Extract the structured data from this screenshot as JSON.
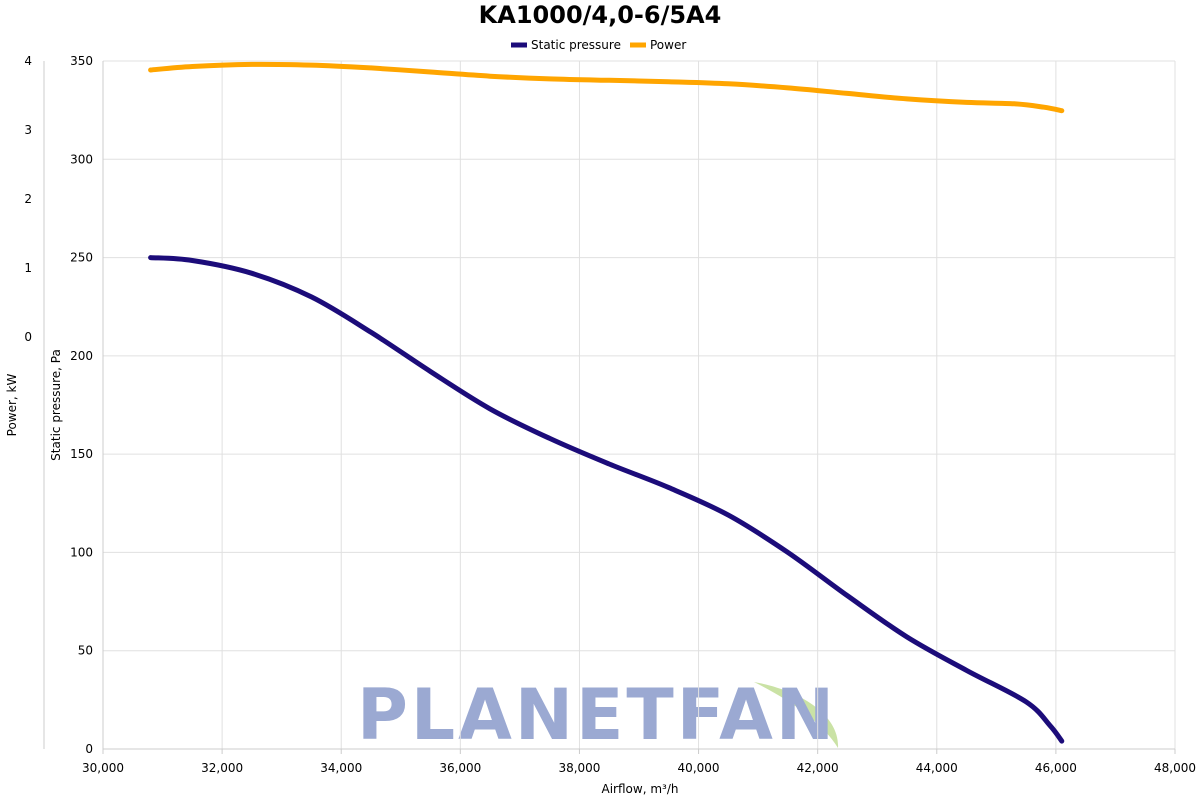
{
  "chart_data": {
    "type": "line",
    "title": "KA1000/4,0-6/5A4",
    "xlabel": "Airflow, m³/h",
    "ylabel_left_outer": "Power, kW",
    "ylabel_left_inner": "Static pressure, Pa",
    "xlim": [
      30000,
      48000
    ],
    "x_ticks": [
      "30,000",
      "32,000",
      "34,000",
      "36,000",
      "38,000",
      "40,000",
      "42,000",
      "44,000",
      "46,000",
      "48,000"
    ],
    "pressure_ticks": [
      "0",
      "50",
      "100",
      "150",
      "200",
      "250",
      "300",
      "350"
    ],
    "power_ticks": [
      "0",
      "1",
      "2",
      "3",
      "4"
    ],
    "grid": true,
    "legend_position": "top-center",
    "series": [
      {
        "name": "Static pressure",
        "axis": "pressure",
        "color": "#1c0c7a",
        "x": [
          30800,
          31500,
          32500,
          33500,
          34500,
          35500,
          36500,
          37500,
          38500,
          39500,
          40500,
          41500,
          42500,
          43500,
          44500,
          45500,
          45900,
          46100
        ],
        "values": [
          250,
          248.5,
          242,
          230,
          212,
          192,
          173,
          158,
          145,
          133,
          119,
          100,
          78,
          57,
          40,
          24,
          12,
          4
        ]
      },
      {
        "name": "Power",
        "axis": "power",
        "color": "#ffa500",
        "x": [
          30800,
          31500,
          32500,
          33500,
          34500,
          35500,
          36500,
          37500,
          38500,
          39500,
          40500,
          41500,
          42500,
          43500,
          44500,
          45300,
          45800,
          46100
        ],
        "values": [
          3.87,
          3.92,
          3.95,
          3.94,
          3.9,
          3.84,
          3.78,
          3.74,
          3.72,
          3.7,
          3.67,
          3.61,
          3.53,
          3.45,
          3.4,
          3.38,
          3.33,
          3.28
        ]
      }
    ]
  },
  "watermark": {
    "text": "PLANETFAN",
    "leaf_color": "#c4df9b"
  }
}
